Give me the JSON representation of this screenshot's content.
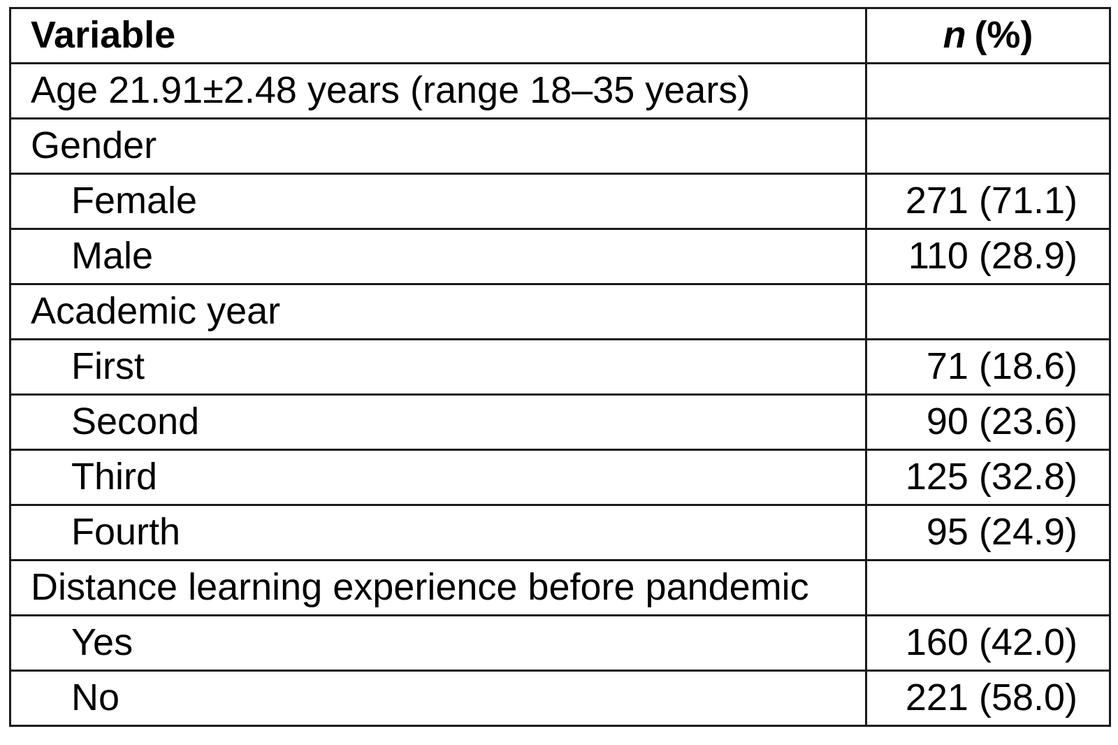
{
  "table": {
    "header": {
      "variable_label": "Variable",
      "n_symbol": "n",
      "pct_label": "(%)"
    },
    "rows": [
      {
        "label": "Age 21.91±2.48 years (range 18–35 years)",
        "value": "",
        "indent": false
      },
      {
        "label": "Gender",
        "value": "",
        "indent": false
      },
      {
        "label": "Female",
        "value": "271 (71.1)",
        "indent": true
      },
      {
        "label": "Male",
        "value": "110 (28.9)",
        "indent": true
      },
      {
        "label": "Academic year",
        "value": "",
        "indent": false
      },
      {
        "label": "First",
        "value": "71 (18.6)",
        "indent": true
      },
      {
        "label": "Second",
        "value": "90 (23.6)",
        "indent": true
      },
      {
        "label": "Third",
        "value": "125 (32.8)",
        "indent": true
      },
      {
        "label": "Fourth",
        "value": "95 (24.9)",
        "indent": true
      },
      {
        "label": "Distance learning experience before pandemic",
        "value": "",
        "indent": false
      },
      {
        "label": "Yes",
        "value": "160 (42.0)",
        "indent": true
      },
      {
        "label": "No",
        "value": "221 (58.0)",
        "indent": true
      }
    ]
  },
  "colors": {
    "border": "#1a1a1a",
    "text": "#000000",
    "background": "#ffffff"
  }
}
